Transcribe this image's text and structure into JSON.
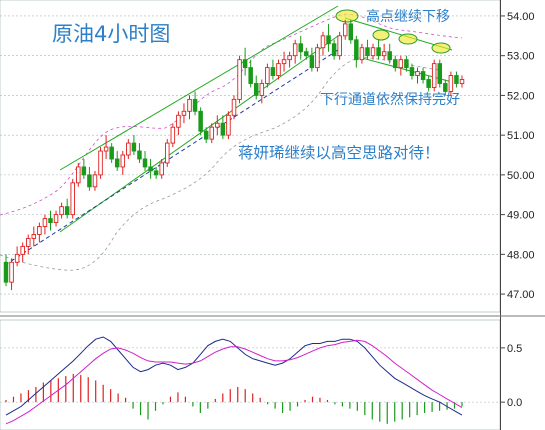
{
  "chart_data": [
    {
      "type": "candlestick",
      "title": "原油4小时图",
      "ylim": [
        46.7,
        54.2
      ],
      "y_ticks": [
        "54.00",
        "53.00",
        "52.00",
        "51.00",
        "50.00",
        "49.00",
        "48.00",
        "47.00"
      ],
      "y_tick_values": [
        54,
        53,
        52,
        51,
        50,
        49,
        48,
        47
      ],
      "annotations": [
        {
          "text": "高点继续下移"
        },
        {
          "text": "下行通道依然保持完好"
        },
        {
          "text": "蒋妍琋继续以高空思路对待！"
        }
      ],
      "colors": {
        "up": "#e02020",
        "down": "#1a9a1a",
        "channel": "#22aa22",
        "trend": "#1e3a9a",
        "band": "#d050d0",
        "lower_band": "#9a9a9a",
        "highlight": "#e8e020"
      },
      "candles": [
        [
          47.8,
          48.0,
          47.2,
          47.3
        ],
        [
          47.3,
          47.9,
          47.1,
          47.8
        ],
        [
          47.8,
          48.2,
          47.7,
          48.0
        ],
        [
          48.0,
          48.3,
          47.8,
          48.2
        ],
        [
          48.2,
          48.5,
          48.0,
          48.4
        ],
        [
          48.4,
          48.7,
          48.2,
          48.5
        ],
        [
          48.5,
          48.8,
          48.3,
          48.7
        ],
        [
          48.7,
          49.0,
          48.5,
          48.9
        ],
        [
          48.9,
          49.1,
          48.6,
          48.8
        ],
        [
          48.8,
          49.1,
          48.7,
          49.0
        ],
        [
          49.0,
          49.3,
          48.9,
          49.2
        ],
        [
          49.2,
          49.4,
          48.9,
          49.0
        ],
        [
          49.0,
          49.9,
          48.9,
          49.8
        ],
        [
          49.8,
          50.3,
          49.7,
          50.2
        ],
        [
          50.2,
          50.4,
          49.9,
          50.0
        ],
        [
          50.0,
          50.2,
          49.6,
          49.7
        ],
        [
          49.7,
          50.1,
          49.6,
          50.0
        ],
        [
          50.0,
          50.7,
          49.9,
          50.6
        ],
        [
          50.6,
          51.0,
          50.4,
          50.7
        ],
        [
          50.7,
          50.8,
          50.3,
          50.4
        ],
        [
          50.4,
          50.6,
          50.1,
          50.2
        ],
        [
          50.2,
          50.6,
          50.0,
          50.5
        ],
        [
          50.5,
          50.9,
          50.4,
          50.8
        ],
        [
          50.8,
          51.0,
          50.5,
          50.6
        ],
        [
          50.6,
          50.8,
          50.3,
          50.4
        ],
        [
          50.4,
          50.6,
          50.1,
          50.2
        ],
        [
          50.2,
          50.4,
          49.9,
          50.1
        ],
        [
          50.1,
          50.2,
          49.9,
          50.0
        ],
        [
          50.0,
          50.4,
          49.9,
          50.3
        ],
        [
          50.3,
          50.9,
          50.2,
          50.8
        ],
        [
          50.8,
          51.3,
          50.7,
          51.2
        ],
        [
          51.2,
          51.6,
          51.0,
          51.5
        ],
        [
          51.5,
          51.8,
          51.3,
          51.6
        ],
        [
          51.6,
          52.0,
          51.4,
          51.9
        ],
        [
          51.9,
          52.1,
          51.5,
          51.6
        ],
        [
          51.6,
          51.7,
          51.0,
          51.1
        ],
        [
          51.1,
          51.2,
          50.8,
          50.9
        ],
        [
          50.9,
          51.3,
          50.8,
          51.2
        ],
        [
          51.2,
          51.5,
          51.0,
          51.3
        ],
        [
          51.3,
          51.5,
          50.9,
          51.0
        ],
        [
          51.0,
          51.6,
          50.9,
          51.5
        ],
        [
          51.5,
          52.0,
          51.4,
          51.9
        ],
        [
          51.9,
          53.0,
          51.8,
          52.9
        ],
        [
          52.9,
          53.2,
          52.5,
          52.7
        ],
        [
          52.7,
          52.9,
          52.2,
          52.3
        ],
        [
          52.3,
          52.5,
          51.9,
          52.0
        ],
        [
          52.0,
          52.4,
          51.8,
          52.3
        ],
        [
          52.3,
          52.8,
          52.2,
          52.7
        ],
        [
          52.7,
          52.9,
          52.4,
          52.5
        ],
        [
          52.5,
          52.9,
          52.4,
          52.8
        ],
        [
          52.8,
          53.1,
          52.6,
          52.9
        ],
        [
          52.9,
          53.1,
          52.7,
          53.0
        ],
        [
          53.0,
          53.4,
          52.8,
          53.3
        ],
        [
          53.3,
          53.5,
          52.9,
          53.1
        ],
        [
          53.1,
          53.2,
          52.9,
          53.0
        ],
        [
          53.0,
          53.2,
          52.6,
          52.7
        ],
        [
          52.7,
          53.3,
          52.6,
          53.2
        ],
        [
          53.2,
          53.6,
          53.0,
          53.5
        ],
        [
          53.5,
          53.8,
          53.1,
          53.3
        ],
        [
          53.3,
          53.4,
          52.9,
          53.0
        ],
        [
          53.0,
          53.6,
          52.9,
          53.5
        ],
        [
          53.5,
          53.9,
          53.4,
          53.8
        ],
        [
          53.8,
          53.9,
          53.3,
          53.4
        ],
        [
          53.4,
          53.5,
          52.7,
          52.9
        ],
        [
          52.9,
          53.3,
          52.8,
          53.2
        ],
        [
          53.2,
          53.4,
          52.9,
          53.0
        ],
        [
          53.0,
          53.3,
          52.9,
          53.2
        ],
        [
          53.2,
          53.4,
          52.9,
          53.0
        ],
        [
          53.0,
          53.3,
          52.9,
          53.1
        ],
        [
          53.1,
          53.3,
          52.8,
          52.9
        ],
        [
          52.9,
          53.0,
          52.6,
          52.7
        ],
        [
          52.7,
          53.0,
          52.5,
          52.9
        ],
        [
          52.9,
          53.0,
          52.6,
          52.7
        ],
        [
          52.7,
          52.8,
          52.4,
          52.5
        ],
        [
          52.5,
          52.7,
          52.3,
          52.6
        ],
        [
          52.6,
          52.7,
          52.3,
          52.4
        ],
        [
          52.4,
          52.5,
          52.1,
          52.2
        ],
        [
          52.2,
          52.9,
          52.1,
          52.8
        ],
        [
          52.8,
          52.9,
          52.2,
          52.3
        ],
        [
          52.3,
          52.4,
          52.0,
          52.1
        ],
        [
          52.1,
          52.6,
          52.0,
          52.5
        ],
        [
          52.5,
          52.6,
          52.2,
          52.3
        ],
        [
          52.3,
          52.5,
          52.2,
          52.4
        ]
      ]
    },
    {
      "type": "line",
      "ylim": [
        -0.22,
        0.72
      ],
      "y_ticks": [
        "0.5",
        "0.0"
      ],
      "y_tick_values": [
        0.5,
        0.0
      ],
      "series": [
        {
          "color": "#1e2a8a",
          "values": [
            -0.12,
            -0.08,
            -0.04,
            0.02,
            0.08,
            0.14,
            0.2,
            0.26,
            0.32,
            0.38,
            0.45,
            0.52,
            0.58,
            0.6,
            0.56,
            0.48,
            0.4,
            0.32,
            0.28,
            0.3,
            0.34,
            0.36,
            0.34,
            0.3,
            0.32,
            0.36,
            0.44,
            0.52,
            0.56,
            0.58,
            0.56,
            0.5,
            0.44,
            0.4,
            0.38,
            0.36,
            0.34,
            0.36,
            0.4,
            0.46,
            0.52,
            0.54,
            0.54,
            0.56,
            0.56,
            0.58,
            0.58,
            0.56,
            0.5,
            0.42,
            0.34,
            0.28,
            0.22,
            0.18,
            0.14,
            0.1,
            0.06,
            0.03,
            0.0,
            -0.04,
            -0.08,
            -0.12
          ]
        },
        {
          "color": "#d020d0",
          "values": [
            -0.2,
            -0.17,
            -0.13,
            -0.09,
            -0.04,
            0.01,
            0.06,
            0.11,
            0.16,
            0.22,
            0.28,
            0.34,
            0.4,
            0.45,
            0.49,
            0.5,
            0.48,
            0.45,
            0.41,
            0.38,
            0.37,
            0.37,
            0.37,
            0.36,
            0.35,
            0.36,
            0.38,
            0.42,
            0.46,
            0.49,
            0.51,
            0.51,
            0.49,
            0.46,
            0.43,
            0.4,
            0.38,
            0.38,
            0.39,
            0.41,
            0.44,
            0.47,
            0.5,
            0.52,
            0.53,
            0.55,
            0.56,
            0.57,
            0.56,
            0.52,
            0.47,
            0.42,
            0.36,
            0.31,
            0.26,
            0.21,
            0.16,
            0.11,
            0.07,
            0.03,
            -0.01,
            -0.05
          ]
        }
      ],
      "histogram": [
        0.02,
        0.05,
        0.08,
        0.11,
        0.14,
        0.18,
        0.2,
        0.22,
        0.24,
        0.26,
        0.25,
        0.23,
        0.2,
        0.16,
        0.12,
        0.08,
        0.04,
        -0.06,
        -0.12,
        -0.16,
        -0.08,
        -0.02,
        0.05,
        0.09,
        0.05,
        -0.04,
        -0.1,
        -0.06,
        0.03,
        0.08,
        0.12,
        0.14,
        0.12,
        0.08,
        0.04,
        -0.02,
        -0.06,
        -0.1,
        -0.08,
        -0.04,
        0.02,
        0.05,
        0.04,
        0.02,
        -0.02,
        -0.04,
        -0.06,
        -0.08,
        -0.12,
        -0.16,
        -0.18,
        -0.2,
        -0.18,
        -0.16,
        -0.14,
        -0.12,
        -0.1,
        -0.09,
        -0.08,
        -0.07,
        -0.06,
        -0.04
      ]
    }
  ]
}
